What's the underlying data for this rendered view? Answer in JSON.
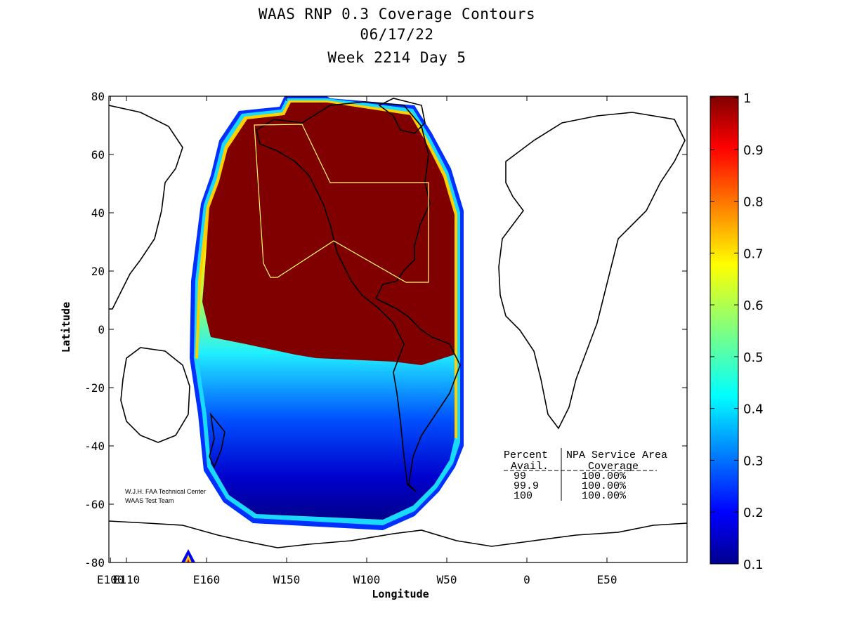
{
  "title": {
    "line1": "WAAS RNP 0.3 Coverage Contours",
    "line2": "06/17/22",
    "line3": "Week 2214 Day 5"
  },
  "axes": {
    "xlabel": "Longitude",
    "ylabel": "Latitude",
    "xticks": [
      {
        "lon": 110,
        "label": "E110"
      },
      {
        "lon": 160,
        "label": "E160"
      },
      {
        "lon": -150,
        "label": "W150"
      },
      {
        "lon": -100,
        "label": "W100"
      },
      {
        "lon": -50,
        "label": "W50"
      },
      {
        "lon": 0,
        "label": "0"
      },
      {
        "lon": 50,
        "label": "E50"
      },
      {
        "lon": 100,
        "label": "E100"
      }
    ],
    "yticks": [
      80,
      60,
      40,
      20,
      0,
      -20,
      -40,
      -60,
      -80
    ]
  },
  "colorbar": {
    "ticks": [
      "1",
      "0.9",
      "0.8",
      "0.7",
      "0.6",
      "0.5",
      "0.4",
      "0.3",
      "0.2",
      "0.1"
    ],
    "min": 0.1,
    "max": 1
  },
  "credit": {
    "line1": "W.J.H. FAA Technical Center",
    "line2": "WAAS Test Team"
  },
  "table": {
    "header1_col1": "Percent",
    "header1_col2": "NPA Service Area",
    "header2_col1": "Avail.",
    "header2_col2": "Coverage",
    "rows": [
      {
        "avail": "99",
        "coverage": "100.00%"
      },
      {
        "avail": "99.9",
        "coverage": "100.00%"
      },
      {
        "avail": "100",
        "coverage": "100.00%"
      }
    ]
  },
  "colors": {
    "max_band": "#800000",
    "min_band": "#00008f"
  }
}
